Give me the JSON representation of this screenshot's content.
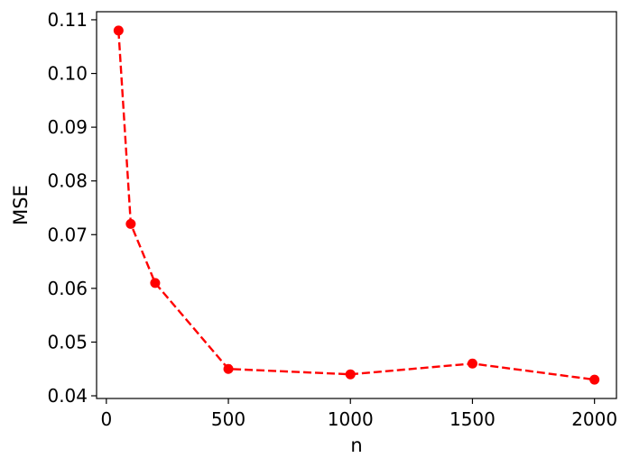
{
  "chart_data": {
    "type": "line",
    "title": "",
    "xlabel": "n",
    "ylabel": "MSE",
    "xlim": [
      -40,
      2090
    ],
    "ylim": [
      0.0395,
      0.1115
    ],
    "xticks": [
      0,
      500,
      1000,
      1500,
      2000
    ],
    "xtick_labels": [
      "0",
      "500",
      "1000",
      "1500",
      "2000"
    ],
    "yticks": [
      0.04,
      0.05,
      0.06,
      0.07,
      0.08,
      0.09,
      0.1,
      0.11
    ],
    "ytick_labels": [
      "0.04",
      "0.05",
      "0.06",
      "0.07",
      "0.08",
      "0.09",
      "0.10",
      "0.11"
    ],
    "grid": false,
    "legend": "none",
    "series": [
      {
        "x": [
          50,
          100,
          200,
          500,
          1000,
          1500,
          2000
        ],
        "y": [
          0.108,
          0.072,
          0.061,
          0.045,
          0.044,
          0.046,
          0.043
        ],
        "color": "#ff0000",
        "line_style": "dashed",
        "marker": "circle"
      }
    ]
  }
}
